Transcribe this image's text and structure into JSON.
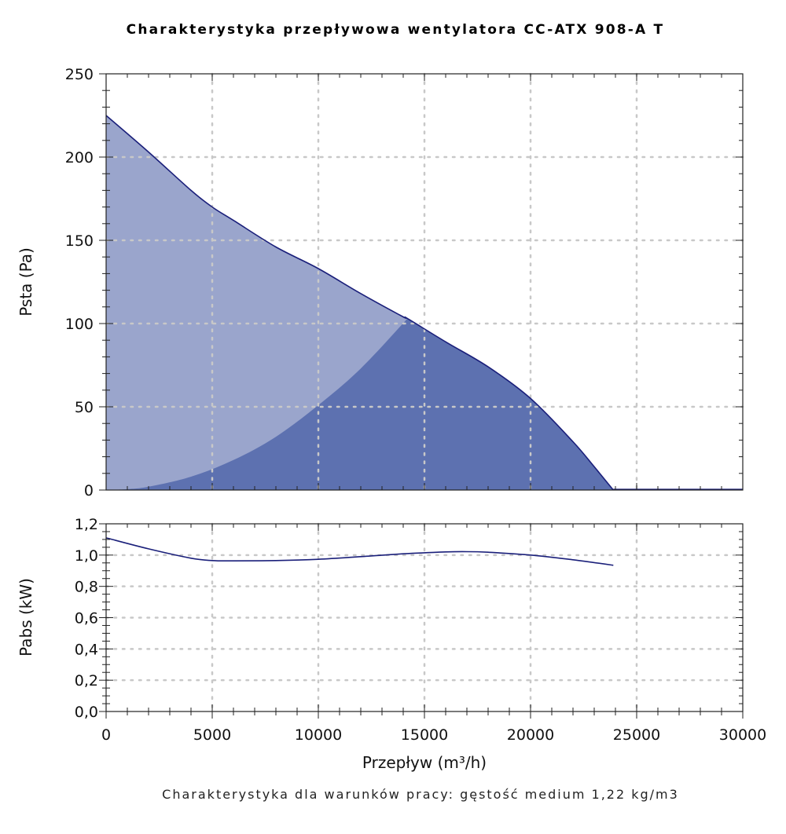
{
  "chart_data": [
    {
      "type": "area",
      "title": "Charakterystyka przepływowa wentylatora CC-ATX 908-A T",
      "xlabel": "Przepływ (m³/h)",
      "ylabel": "Psta (Pa)",
      "xlim": [
        0,
        30000
      ],
      "ylim": [
        0,
        250
      ],
      "x_ticks": [
        0,
        5000,
        10000,
        15000,
        20000,
        25000,
        30000
      ],
      "x_tick_labels": [
        "0",
        "5000",
        "10000",
        "15000",
        "20000",
        "25000",
        "30000"
      ],
      "y_ticks": [
        0,
        50,
        100,
        150,
        200,
        250
      ],
      "y_tick_labels": [
        "0",
        "50",
        "100",
        "150",
        "200",
        "250"
      ],
      "grid": true,
      "series": [
        {
          "role": "fan-curve",
          "x": [
            0,
            2000,
            4000,
            5000,
            6000,
            8000,
            10000,
            12000,
            14000,
            14200,
            16000,
            18000,
            20000,
            22000,
            23000,
            23900
          ],
          "y": [
            225,
            203,
            180,
            170,
            162,
            146,
            133,
            118,
            104,
            103,
            89,
            74,
            55,
            29,
            14,
            0
          ]
        },
        {
          "role": "system-curve",
          "x": [
            0,
            1000,
            2000,
            4000,
            6000,
            8000,
            10000,
            12000,
            14200
          ],
          "y": [
            0,
            0.5,
            2,
            8,
            18,
            32,
            51,
            73,
            103
          ]
        },
        {
          "role": "zero-line",
          "x": [
            23900,
            30000
          ],
          "y": [
            0,
            0
          ]
        }
      ],
      "colors": {
        "light_fill": "#9aa5cc",
        "dark_fill": "#5d71b0",
        "curve": "#1a1f7a"
      }
    },
    {
      "type": "line",
      "xlabel": "Przepływ (m³/h)",
      "ylabel": "Pabs (kW)",
      "xlim": [
        0,
        30000
      ],
      "ylim": [
        0,
        1.2
      ],
      "x_ticks": [
        0,
        5000,
        10000,
        15000,
        20000,
        25000,
        30000
      ],
      "x_tick_labels": [
        "0",
        "5000",
        "10000",
        "15000",
        "20000",
        "25000",
        "30000"
      ],
      "y_ticks": [
        0,
        0.2,
        0.4,
        0.6,
        0.8,
        1.0,
        1.2
      ],
      "y_tick_labels": [
        "0,0",
        "0,2",
        "0,4",
        "0,6",
        "0,8",
        "1,0",
        "1,2"
      ],
      "grid": true,
      "series": [
        {
          "role": "power-curve",
          "x": [
            0,
            2000,
            4000,
            5000,
            6000,
            8000,
            10000,
            12000,
            14000,
            16000,
            17000,
            18000,
            20000,
            22000,
            23900
          ],
          "y": [
            1.11,
            1.04,
            0.98,
            0.965,
            0.963,
            0.965,
            0.973,
            0.99,
            1.008,
            1.02,
            1.022,
            1.018,
            1.0,
            0.97,
            0.935
          ]
        }
      ],
      "colors": {
        "curve": "#1a1f7a"
      }
    }
  ],
  "footer": "Charakterystyka dla warunków pracy: gęstość medium 1,22 kg/m3"
}
